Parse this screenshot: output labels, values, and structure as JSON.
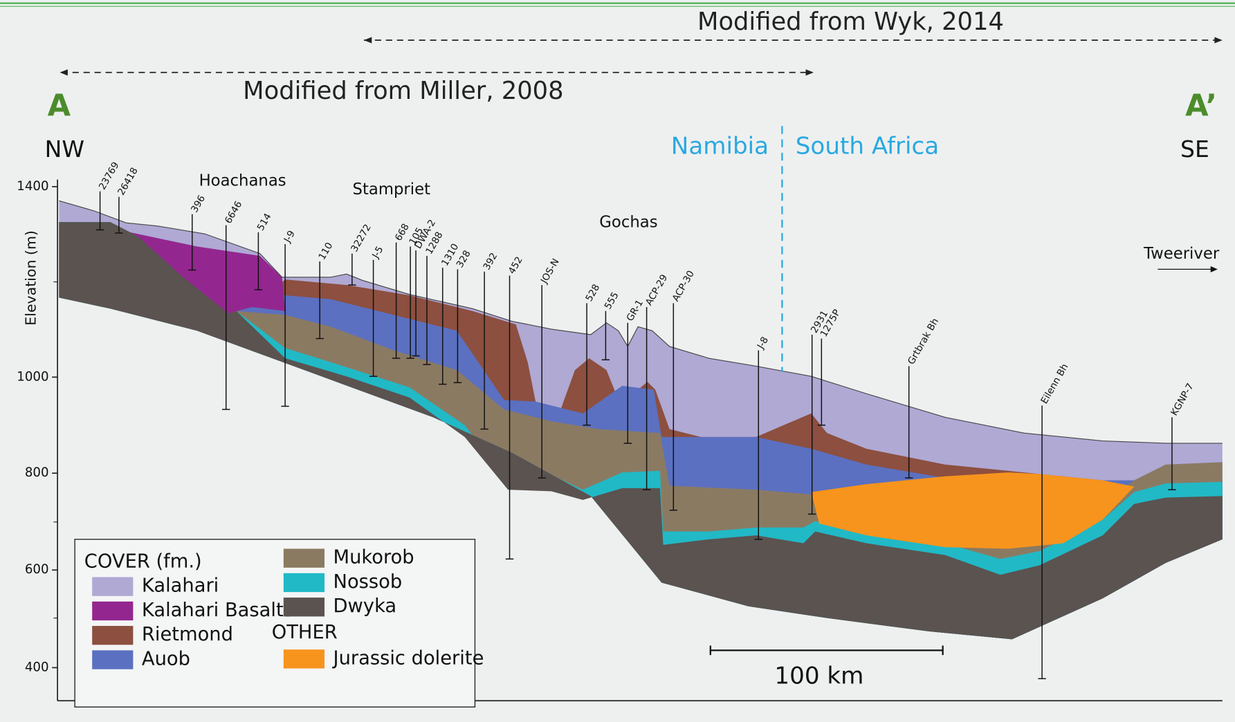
{
  "sources": {
    "upper": "Modified from Wyk, 2014",
    "lower": "Modified from Miller, 2008"
  },
  "section": {
    "start": "A",
    "end": "A’",
    "left_dir": "NW",
    "right_dir": "SE"
  },
  "border": {
    "left": "Namibia",
    "right": "South Africa"
  },
  "axis": {
    "label": "Elevation (m)",
    "ticks": [
      1400,
      1000,
      800,
      600,
      400
    ]
  },
  "places": [
    "Hoachanas",
    "Stampriet",
    "Gochas",
    "Tweeriver"
  ],
  "boreholes": [
    {
      "label": "23769"
    },
    {
      "label": "26418"
    },
    {
      "label": "396"
    },
    {
      "label": "6646"
    },
    {
      "label": "514"
    },
    {
      "label": "J-9"
    },
    {
      "label": "110"
    },
    {
      "label": "32272"
    },
    {
      "label": "J-5"
    },
    {
      "label": "668"
    },
    {
      "label": "105"
    },
    {
      "label": "DWA-2"
    },
    {
      "label": "1288"
    },
    {
      "label": "1310"
    },
    {
      "label": "328"
    },
    {
      "label": "392"
    },
    {
      "label": "452"
    },
    {
      "label": "JOS-N"
    },
    {
      "label": "528"
    },
    {
      "label": "555"
    },
    {
      "label": "GR-1"
    },
    {
      "label": "ACP-29"
    },
    {
      "label": "ACP-30"
    },
    {
      "label": "J-8"
    },
    {
      "label": "2931"
    },
    {
      "label": "1275P"
    },
    {
      "label": "Grtbrak Bh"
    },
    {
      "label": "Eilenn Bh"
    },
    {
      "label": "KGNP-7"
    }
  ],
  "scale_bar": "100 km",
  "legend": {
    "cover_title": "COVER (fm.)",
    "other_title": "OTHER",
    "items": [
      {
        "name": "Kalahari",
        "color": "#afa9d4"
      },
      {
        "name": "Kalahari Basalts",
        "color": "#93278f"
      },
      {
        "name": "Rietmond",
        "color": "#8d4f3f"
      },
      {
        "name": "Auob",
        "color": "#5b70c0"
      },
      {
        "name": "Mukorob",
        "color": "#8b7a62"
      },
      {
        "name": "Nossob",
        "color": "#21b9c6"
      },
      {
        "name": "Dwyka",
        "color": "#5a5350"
      },
      {
        "name": "Jurassic dolerite",
        "color": "#f7941d"
      }
    ]
  }
}
